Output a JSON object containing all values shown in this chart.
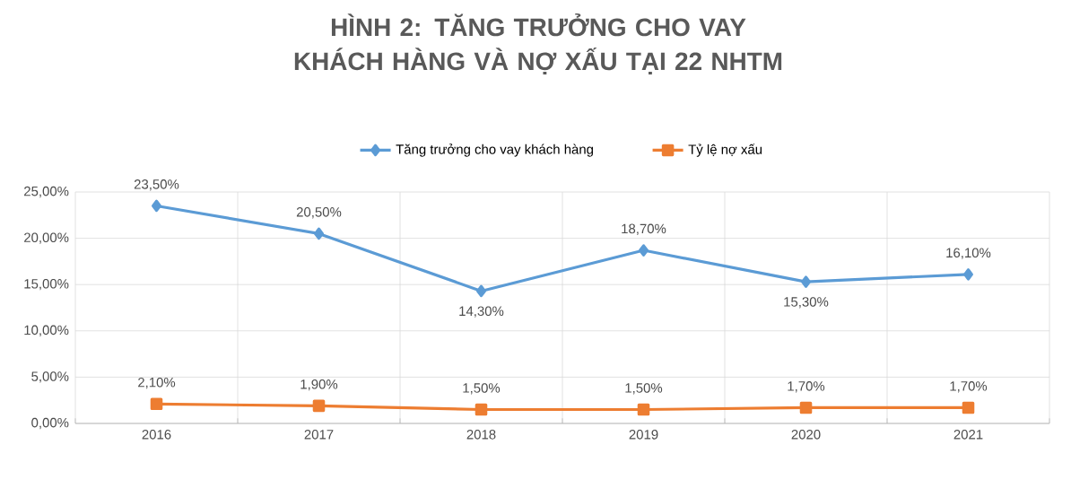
{
  "chart_data": {
    "type": "line",
    "title": "HÌNH 2: TĂNG TRƯỞNG CHO VAY KHÁCH HÀNG VÀ NỢ XẤU TẠI 22 NHTM",
    "categories": [
      "2016",
      "2017",
      "2018",
      "2019",
      "2020",
      "2021"
    ],
    "series": [
      {
        "name": "Tăng trưởng cho vay khách hàng",
        "color": "#5b9bd5",
        "marker": "diamond",
        "values": [
          23.5,
          20.5,
          14.3,
          18.7,
          15.3,
          16.1
        ],
        "value_labels": [
          "23,50%",
          "20,50%",
          "14,30%",
          "18,70%",
          "15,30%",
          "16,10%"
        ]
      },
      {
        "name": "Tỷ lệ nợ xấu",
        "color": "#ed7d31",
        "marker": "square",
        "values": [
          2.1,
          1.9,
          1.5,
          1.5,
          1.7,
          1.7
        ],
        "value_labels": [
          "2,10%",
          "1,90%",
          "1,50%",
          "1,50%",
          "1,70%",
          "1,70%"
        ]
      }
    ],
    "ylim": [
      0,
      25
    ],
    "yticks": [
      {
        "value": 0,
        "label": "0,00%"
      },
      {
        "value": 5,
        "label": "5,00%"
      },
      {
        "value": 10,
        "label": "10,00%"
      },
      {
        "value": 15,
        "label": "15,00%"
      },
      {
        "value": 20,
        "label": "20,00%"
      },
      {
        "value": 25,
        "label": "25,00%"
      }
    ],
    "grid": true,
    "legend": "top"
  }
}
